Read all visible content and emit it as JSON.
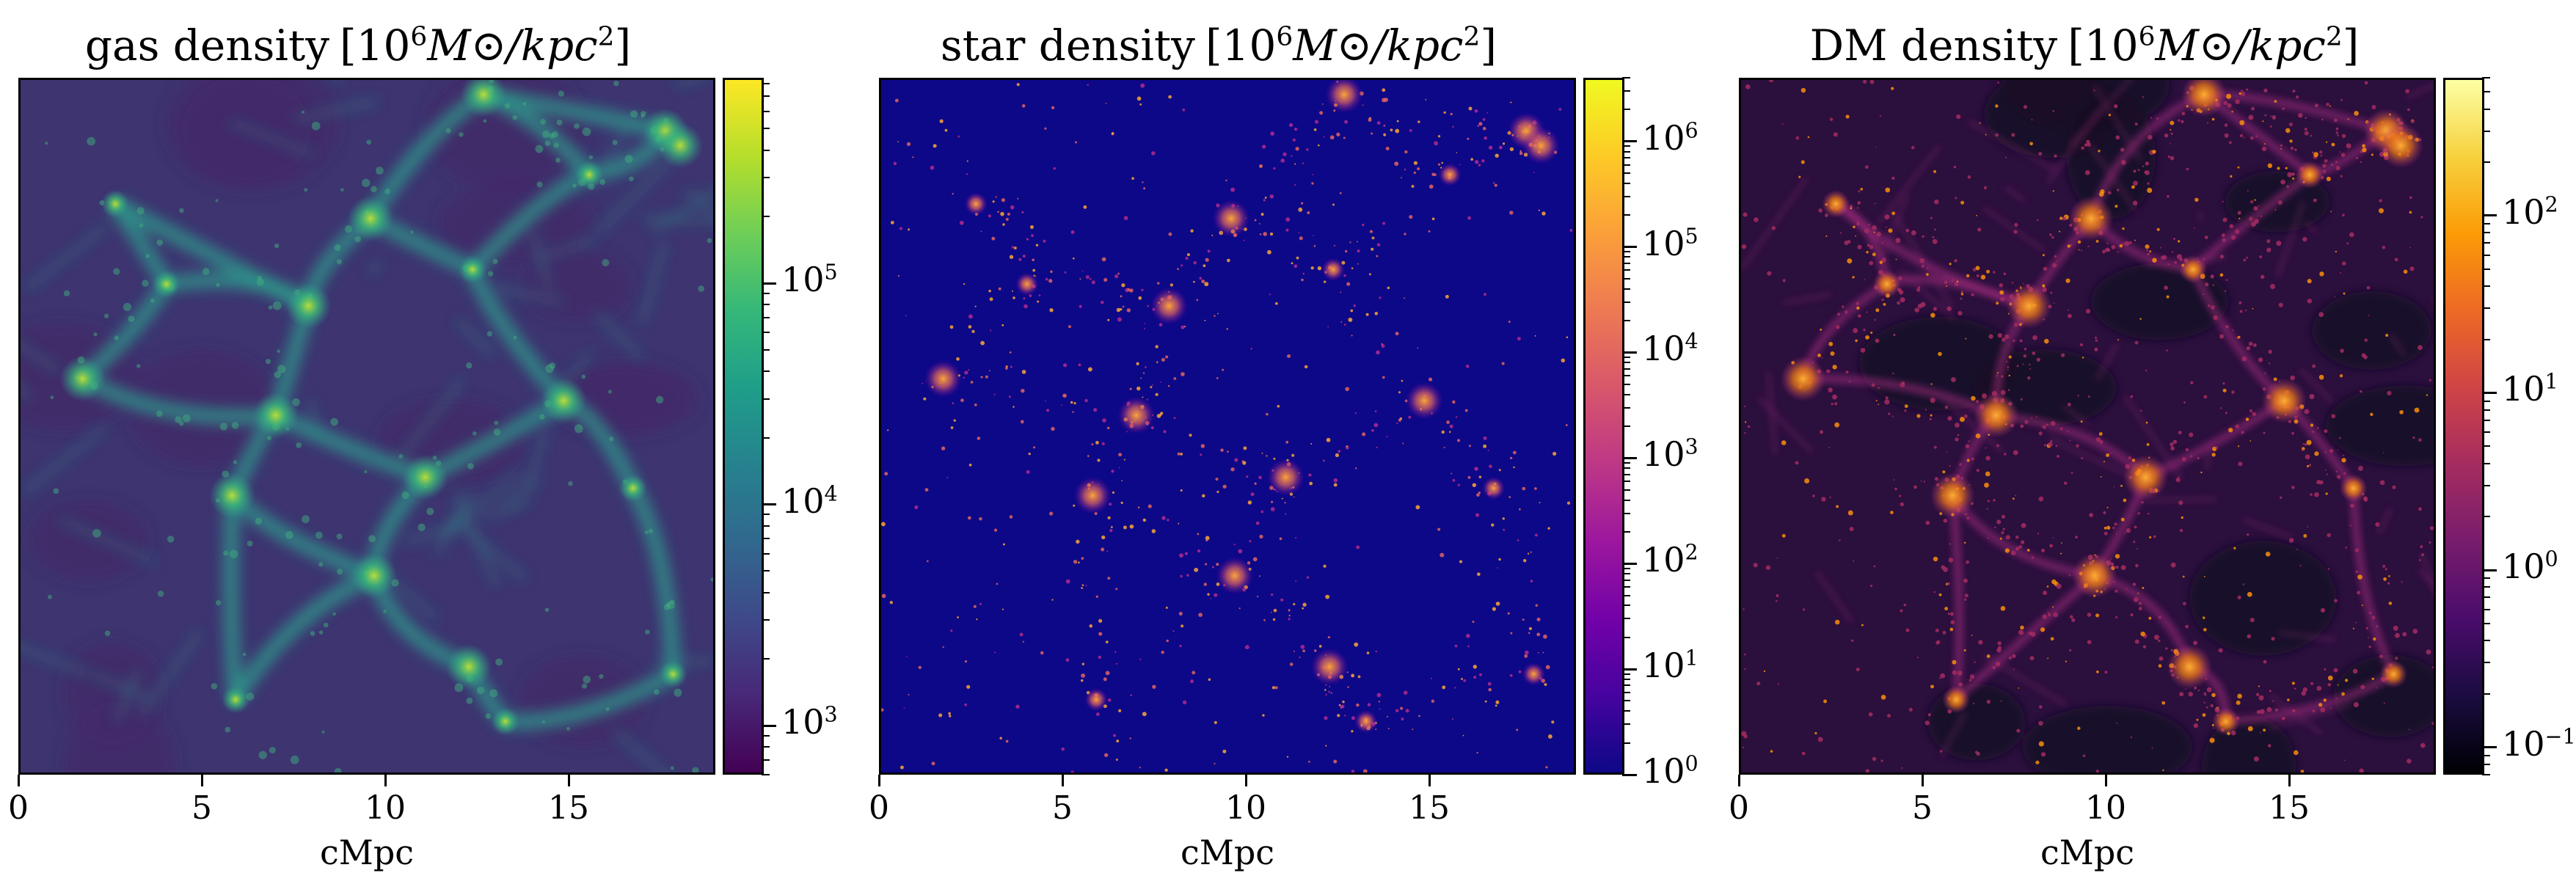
{
  "chart_data": [
    {
      "type": "heatmap",
      "title": "gas density",
      "unit": "[10",
      "unit_exp": "6",
      "unit_rest": "M⊙/kpc",
      "unit_sq": "2",
      "unit_close": "]",
      "xlabel": "cMpc",
      "x_ticks": [
        "0",
        "5",
        "10",
        "15"
      ],
      "x_range": [
        0,
        19
      ],
      "colormap": "viridis",
      "log_scale": true,
      "cbar_range": [
        600,
        850000
      ],
      "cbar_ticks": [
        {
          "base": "10",
          "exp": "3",
          "value": 1000
        },
        {
          "base": "10",
          "exp": "4",
          "value": 10000
        },
        {
          "base": "10",
          "exp": "5",
          "value": 100000
        }
      ]
    },
    {
      "type": "heatmap",
      "title": "star density",
      "unit": "[10",
      "unit_exp": "6",
      "unit_rest": "M⊙/kpc",
      "unit_sq": "2",
      "unit_close": "]",
      "xlabel": "cMpc",
      "x_ticks": [
        "0",
        "5",
        "10",
        "15"
      ],
      "x_range": [
        0,
        19
      ],
      "colormap": "plasma",
      "log_scale": true,
      "cbar_range": [
        1,
        4000000
      ],
      "cbar_ticks": [
        {
          "base": "10",
          "exp": "0",
          "value": 1
        },
        {
          "base": "10",
          "exp": "1",
          "value": 10
        },
        {
          "base": "10",
          "exp": "2",
          "value": 100
        },
        {
          "base": "10",
          "exp": "3",
          "value": 1000
        },
        {
          "base": "10",
          "exp": "4",
          "value": 10000
        },
        {
          "base": "10",
          "exp": "5",
          "value": 100000
        },
        {
          "base": "10",
          "exp": "6",
          "value": 1000000
        }
      ]
    },
    {
      "type": "heatmap",
      "title": "DM density",
      "unit": "[10",
      "unit_exp": "6",
      "unit_rest": "M⊙/kpc",
      "unit_sq": "2",
      "unit_close": "]",
      "xlabel": "cMpc",
      "x_ticks": [
        "0",
        "5",
        "10",
        "15"
      ],
      "x_range": [
        0,
        19
      ],
      "colormap": "inferno",
      "log_scale": true,
      "cbar_range": [
        0.07,
        600
      ],
      "cbar_ticks": [
        {
          "base": "10",
          "exp": "−1",
          "value": 0.1
        },
        {
          "base": "10",
          "exp": "0",
          "value": 1
        },
        {
          "base": "10",
          "exp": "1",
          "value": 10
        },
        {
          "base": "10",
          "exp": "2",
          "value": 100
        }
      ]
    }
  ],
  "colors": {
    "viridis_bg": "#3b2a66",
    "viridis_filament": "#2a9d8f",
    "plasma_bg": "#0d0887",
    "plasma_hot": "#fca636",
    "inferno_bg": "#2a0f3a",
    "inferno_hot": "#fcae32"
  }
}
